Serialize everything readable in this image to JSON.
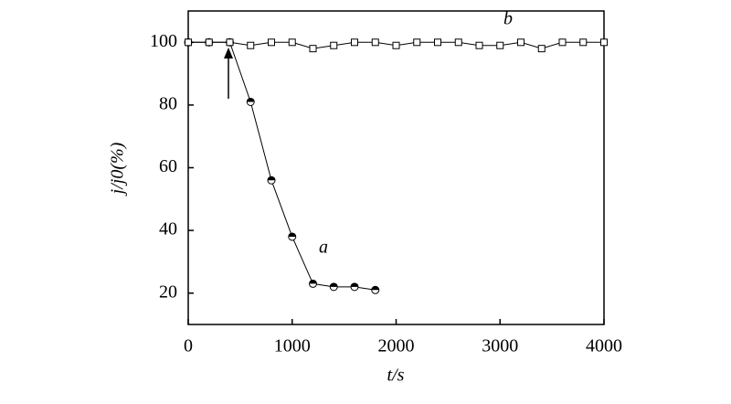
{
  "chart_data": {
    "type": "line",
    "xlabel": "t/s",
    "ylabel": "j/j0(%)",
    "xlim": [
      0,
      4000
    ],
    "xticks": [
      0,
      1000,
      2000,
      3000,
      4000
    ],
    "ylim": [
      10,
      110
    ],
    "yticks": [
      20,
      40,
      60,
      80,
      100
    ],
    "annotations": [
      "a",
      "b"
    ],
    "series": [
      {
        "name": "a",
        "color": "#000000",
        "marker": "half-circle",
        "x": [
          0,
          200,
          400,
          600,
          800,
          1000,
          1200,
          1400,
          1600,
          1800
        ],
        "values": [
          100,
          100,
          100,
          81,
          56,
          38,
          23,
          22,
          22,
          21
        ]
      },
      {
        "name": "b",
        "color": "#000000",
        "marker": "square",
        "x": [
          0,
          200,
          400,
          600,
          800,
          1000,
          1200,
          1400,
          1600,
          1800,
          2000,
          2200,
          2400,
          2600,
          2800,
          3000,
          3200,
          3400,
          3600,
          3800,
          4000
        ],
        "values": [
          100,
          100,
          100,
          99,
          100,
          100,
          98,
          99,
          100,
          100,
          99,
          100,
          100,
          100,
          99,
          99,
          100,
          98,
          100,
          100,
          100
        ]
      }
    ]
  }
}
